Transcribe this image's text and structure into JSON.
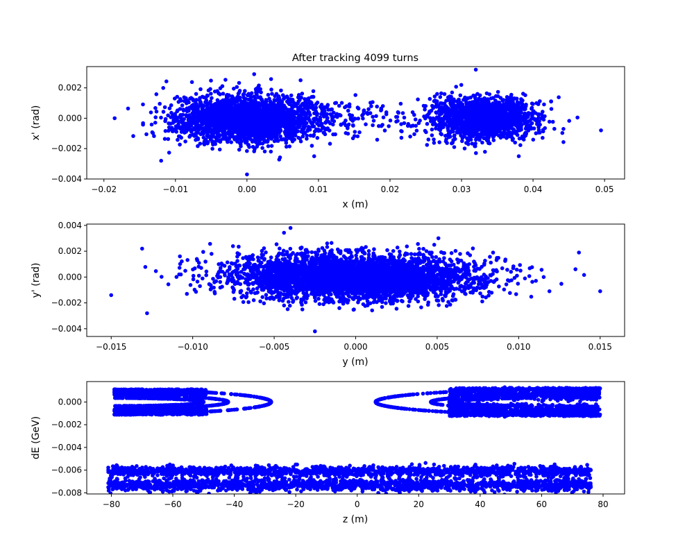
{
  "chart_data": [
    {
      "type": "scatter",
      "title": "After tracking 4099 turns",
      "xlabel": "x (m)",
      "ylabel": "x' (rad)",
      "xlim": [
        -0.0224,
        0.0528
      ],
      "ylim": [
        -0.004,
        0.0034
      ],
      "xticks": [
        -0.02,
        -0.01,
        0.0,
        0.01,
        0.02,
        0.03,
        0.04,
        0.05
      ],
      "xtick_labels": [
        "−0.02",
        "−0.01",
        "0.00",
        "0.01",
        "0.02",
        "0.03",
        "0.04",
        "0.05"
      ],
      "yticks": [
        -0.004,
        -0.002,
        0.0,
        0.002
      ],
      "ytick_labels": [
        "−0.004",
        "−0.002",
        "0.000",
        "0.002"
      ],
      "grid": false,
      "marker_color": "#0000ff",
      "series": [
        {
          "values": [
            [
              0.0,
              0.0
            ],
            [
              -0.0185,
              0.0
            ],
            [
              -0.012,
              -0.0028
            ],
            [
              0.0,
              -0.0037
            ],
            [
              0.001,
              0.0029
            ],
            [
              0.0075,
              0.0025
            ],
            [
              0.0145,
              0.0
            ],
            [
              0.019,
              0.0008
            ]
          ]
        },
        {
          "values": [
            [
              0.033,
              0.0
            ],
            [
              0.0495,
              -0.0008
            ],
            [
              0.032,
              0.0032
            ],
            [
              0.038,
              -0.0025
            ],
            [
              0.0225,
              -0.0005
            ]
          ]
        }
      ]
    },
    {
      "type": "scatter",
      "xlabel": "y (m)",
      "ylabel": "y' (rad)",
      "xlim": [
        -0.0165,
        0.0165
      ],
      "ylim": [
        -0.0046,
        0.0041
      ],
      "xticks": [
        -0.015,
        -0.01,
        -0.005,
        0.0,
        0.005,
        0.01,
        0.015
      ],
      "xtick_labels": [
        "−0.015",
        "−0.010",
        "−0.005",
        "0.000",
        "0.005",
        "0.010",
        "0.015"
      ],
      "yticks": [
        -0.004,
        -0.002,
        0.0,
        0.002,
        0.004
      ],
      "ytick_labels": [
        "−0.004",
        "−0.002",
        "0.000",
        "0.002",
        "0.004"
      ],
      "grid": false,
      "marker_color": "#0000ff",
      "series": [
        {
          "values": [
            [
              0.0,
              0.0
            ],
            [
              -0.015,
              -0.0014
            ],
            [
              0.015,
              -0.0011
            ],
            [
              -0.004,
              0.0038
            ],
            [
              -0.0025,
              -0.0042
            ],
            [
              0.0137,
              0.0019
            ],
            [
              -0.0128,
              -0.0028
            ],
            [
              -0.0131,
              0.0022
            ]
          ]
        }
      ]
    },
    {
      "type": "scatter",
      "xlabel": "z (m)",
      "ylabel": "dE (GeV)",
      "xlim": [
        -88,
        87
      ],
      "ylim": [
        -0.0081,
        0.0018
      ],
      "xticks": [
        -80,
        -60,
        -40,
        -20,
        0,
        20,
        40,
        60,
        80
      ],
      "xtick_labels": [
        "−80",
        "−60",
        "−40",
        "−20",
        "0",
        "20",
        "40",
        "60",
        "80"
      ],
      "yticks": [
        -0.008,
        -0.006,
        -0.004,
        -0.002,
        0.0
      ],
      "ytick_labels": [
        "−0.008",
        "−0.006",
        "−0.004",
        "−0.002",
        "0.000"
      ],
      "grid": false,
      "marker_color": "#0000ff",
      "series": [
        {
          "values": [
            [
              -79,
              0.0011
            ],
            [
              -79,
              -0.0011
            ],
            [
              -28,
              0.0
            ],
            [
              -52,
              0.0003
            ],
            [
              -52,
              -0.0003
            ]
          ]
        },
        {
          "values": [
            [
              6,
              0.0
            ],
            [
              79,
              0.0012
            ],
            [
              79,
              -0.0011
            ],
            [
              48,
              0.0013
            ],
            [
              48,
              -0.0013
            ],
            [
              30,
              0.0004
            ],
            [
              30,
              -0.0004
            ]
          ]
        },
        {
          "values": [
            [
              -81,
              -0.006
            ],
            [
              -81,
              -0.0075
            ],
            [
              76,
              -0.006
            ],
            [
              76,
              -0.0075
            ],
            [
              -20,
              -0.0055
            ],
            [
              25,
              -0.0055
            ],
            [
              -60,
              -0.0078
            ]
          ]
        }
      ]
    }
  ]
}
